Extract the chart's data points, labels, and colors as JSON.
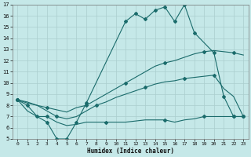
{
  "xlabel": "Humidex (Indice chaleur)",
  "bg_color": "#c5e8e8",
  "line_color": "#1a6b6b",
  "grid_color": "#aacece",
  "xlim": [
    -0.5,
    23.5
  ],
  "ylim": [
    5,
    17
  ],
  "xticks": [
    0,
    1,
    2,
    3,
    4,
    5,
    6,
    7,
    8,
    9,
    10,
    11,
    12,
    13,
    14,
    15,
    16,
    17,
    18,
    19,
    20,
    21,
    22,
    23
  ],
  "yticks": [
    5,
    6,
    7,
    8,
    9,
    10,
    11,
    12,
    13,
    14,
    15,
    16,
    17
  ],
  "lines": [
    {
      "x": [
        0,
        1,
        2,
        3,
        4,
        5,
        6,
        7,
        11,
        12,
        13,
        14,
        15,
        16,
        17,
        18,
        20,
        21,
        22,
        23
      ],
      "y": [
        8.5,
        8,
        7,
        6.5,
        5,
        5,
        6.5,
        8.2,
        15.5,
        16.2,
        15.7,
        16.5,
        16.8,
        15.5,
        17.0,
        14.5,
        12.7,
        8.8,
        7,
        7
      ]
    },
    {
      "x": [
        0,
        1,
        2,
        3,
        4,
        5,
        6,
        7,
        8,
        9,
        10,
        11,
        12,
        13,
        14,
        15,
        16,
        17,
        18,
        19,
        20,
        21,
        22,
        23
      ],
      "y": [
        8.5,
        8.3,
        8.0,
        7.8,
        7.6,
        7.4,
        7.8,
        8.0,
        8.5,
        9.0,
        9.5,
        10.0,
        10.5,
        11.0,
        11.5,
        11.8,
        12.0,
        12.3,
        12.6,
        12.8,
        12.9,
        12.8,
        12.7,
        12.5
      ]
    },
    {
      "x": [
        0,
        1,
        2,
        3,
        4,
        5,
        6,
        7,
        8,
        9,
        10,
        11,
        12,
        13,
        14,
        15,
        16,
        17,
        18,
        19,
        20,
        21,
        22,
        23
      ],
      "y": [
        8.5,
        8.2,
        8.0,
        7.5,
        7.0,
        6.8,
        7.0,
        7.5,
        8.0,
        8.3,
        8.7,
        9.0,
        9.3,
        9.6,
        9.9,
        10.1,
        10.2,
        10.4,
        10.5,
        10.6,
        10.7,
        9.5,
        8.8,
        7.0
      ]
    },
    {
      "x": [
        0,
        1,
        2,
        3,
        4,
        5,
        6,
        7,
        8,
        9,
        10,
        11,
        12,
        13,
        14,
        15,
        16,
        17,
        18,
        19,
        20,
        21,
        22,
        23
      ],
      "y": [
        8.5,
        7.5,
        7.0,
        7.0,
        6.5,
        6.2,
        6.3,
        6.5,
        6.5,
        6.5,
        6.5,
        6.5,
        6.6,
        6.7,
        6.7,
        6.7,
        6.5,
        6.7,
        6.8,
        7.0,
        7.0,
        7.0,
        7.0,
        7.0
      ]
    }
  ],
  "markers": [
    {
      "x": [
        0,
        1,
        2,
        3,
        4,
        5,
        6,
        7,
        11,
        12,
        13,
        14,
        15,
        16,
        17,
        18,
        20,
        21,
        22,
        23
      ],
      "y": [
        8.5,
        8,
        7,
        6.5,
        5,
        5,
        6.5,
        8.2,
        15.5,
        16.2,
        15.7,
        16.5,
        16.8,
        15.5,
        17.0,
        14.5,
        12.7,
        8.8,
        7,
        7
      ]
    },
    {
      "x": [
        0,
        3,
        7,
        11,
        15,
        19,
        22
      ],
      "y": [
        8.5,
        7.8,
        8.0,
        10.0,
        11.8,
        12.8,
        12.7
      ]
    },
    {
      "x": [
        0,
        4,
        8,
        13,
        17,
        20,
        23
      ],
      "y": [
        8.5,
        7.0,
        8.0,
        9.6,
        10.4,
        10.7,
        7.0
      ]
    },
    {
      "x": [
        0,
        3,
        9,
        15,
        19,
        22
      ],
      "y": [
        8.5,
        7.0,
        6.5,
        6.7,
        7.0,
        7.0
      ]
    }
  ]
}
